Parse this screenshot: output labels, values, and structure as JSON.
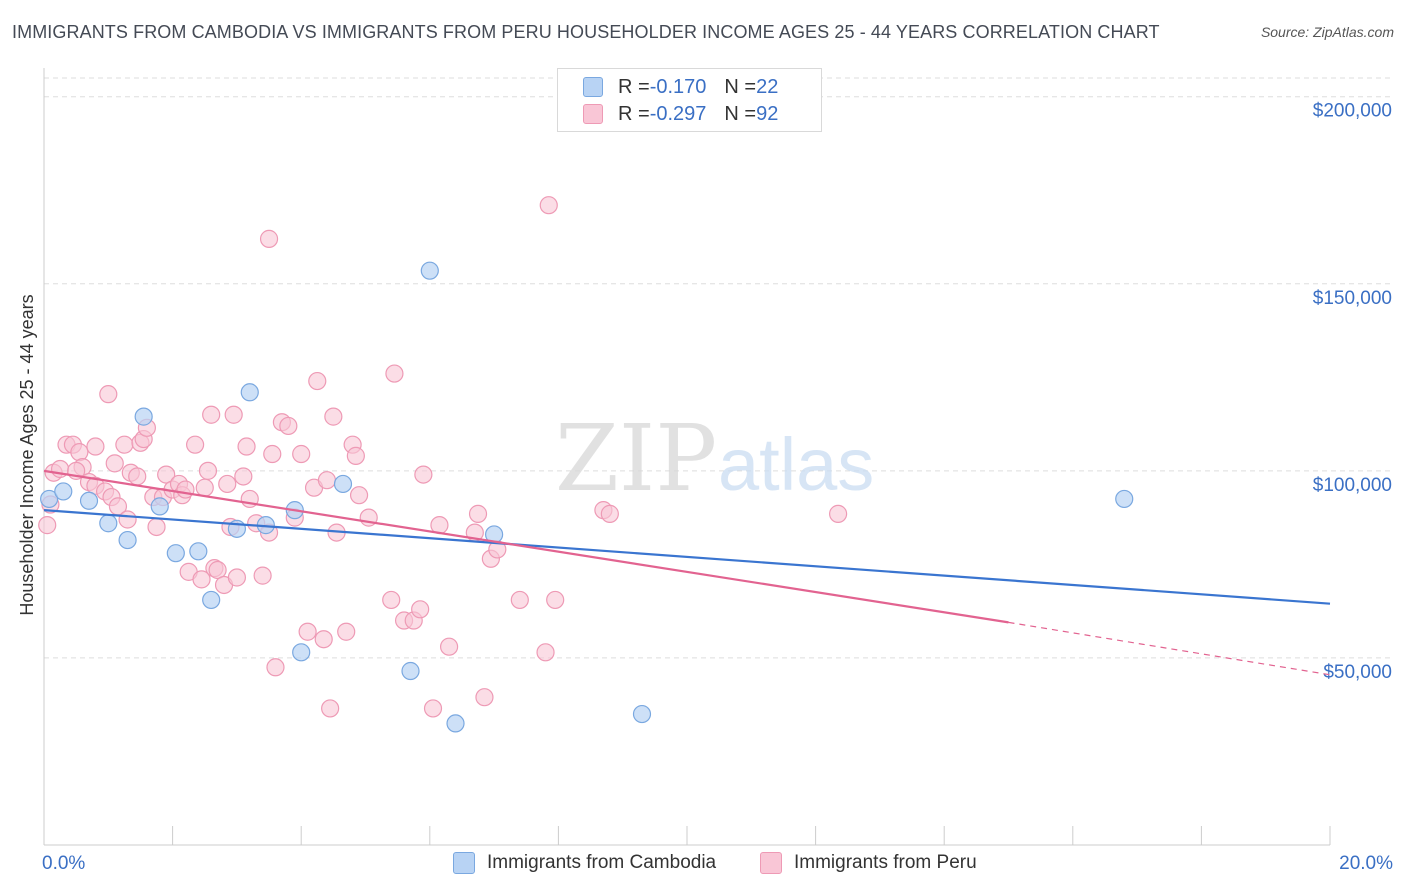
{
  "title": "IMMIGRANTS FROM CAMBODIA VS IMMIGRANTS FROM PERU HOUSEHOLDER INCOME AGES 25 - 44 YEARS CORRELATION CHART",
  "source": "Source: ZipAtlas.com",
  "watermark": {
    "zip": "ZIP",
    "atlas": "atlas"
  },
  "legend": {
    "cambodia": {
      "r_label": "R = ",
      "r_value": "-0.170",
      "n_label": "N = ",
      "n_value": "22"
    },
    "peru": {
      "r_label": "R = ",
      "r_value": "-0.297",
      "n_label": "N = ",
      "n_value": "92"
    }
  },
  "colors": {
    "cambodia_fill": "#b8d3f4",
    "cambodia_stroke": "#7aa8e0",
    "cambodia_line": "#3a75d0",
    "peru_fill": "#f9c6d6",
    "peru_stroke": "#ee9ab5",
    "peru_line": "#e26390",
    "axis_label": "#3a6fc4",
    "grid": "#dddddd"
  },
  "chart_data": {
    "type": "scatter",
    "title": "IMMIGRANTS FROM CAMBODIA VS IMMIGRANTS FROM PERU HOUSEHOLDER INCOME AGES 25 - 44 YEARS CORRELATION CHART",
    "xlabel": "",
    "ylabel": "Householder Income Ages 25 - 44 years",
    "xlim": [
      0,
      20
    ],
    "ylim": [
      0,
      205000
    ],
    "x_tick_labels": [
      "0.0%",
      "20.0%"
    ],
    "y_ticks": [
      50000,
      100000,
      150000,
      200000
    ],
    "y_tick_labels": [
      "$50,000",
      "$100,000",
      "$150,000",
      "$200,000"
    ],
    "grid": true,
    "legend_position": "top-center",
    "series": [
      {
        "name": "Immigrants from Cambodia",
        "points": [
          [
            0.08,
            92500
          ],
          [
            0.3,
            94500
          ],
          [
            0.7,
            92000
          ],
          [
            1.0,
            86000
          ],
          [
            1.3,
            81500
          ],
          [
            1.55,
            114500
          ],
          [
            1.8,
            90500
          ],
          [
            2.05,
            78000
          ],
          [
            2.4,
            78500
          ],
          [
            2.6,
            65500
          ],
          [
            3.0,
            84500
          ],
          [
            3.2,
            121000
          ],
          [
            3.45,
            85500
          ],
          [
            3.9,
            89500
          ],
          [
            4.0,
            51500
          ],
          [
            4.65,
            96500
          ],
          [
            5.7,
            46500
          ],
          [
            6.0,
            153500
          ],
          [
            6.4,
            32500
          ],
          [
            7.0,
            83000
          ],
          [
            9.3,
            35000
          ],
          [
            16.8,
            92500
          ]
        ],
        "trend": {
          "x": [
            0,
            20
          ],
          "y": [
            89500,
            64500
          ]
        }
      },
      {
        "name": "Immigrants from Peru",
        "points": [
          [
            0.05,
            85500
          ],
          [
            0.1,
            91000
          ],
          [
            0.15,
            99500
          ],
          [
            0.25,
            100500
          ],
          [
            0.35,
            107000
          ],
          [
            0.45,
            107000
          ],
          [
            0.55,
            105000
          ],
          [
            0.6,
            101000
          ],
          [
            0.7,
            97000
          ],
          [
            0.8,
            96000
          ],
          [
            0.8,
            106500
          ],
          [
            0.95,
            94500
          ],
          [
            1.05,
            93000
          ],
          [
            1.0,
            120500
          ],
          [
            1.1,
            102000
          ],
          [
            1.15,
            90500
          ],
          [
            1.25,
            107000
          ],
          [
            1.3,
            87000
          ],
          [
            1.35,
            99500
          ],
          [
            1.45,
            98500
          ],
          [
            1.5,
            107500
          ],
          [
            1.55,
            108500
          ],
          [
            1.6,
            111500
          ],
          [
            1.7,
            93000
          ],
          [
            1.75,
            85000
          ],
          [
            1.85,
            93000
          ],
          [
            1.9,
            99000
          ],
          [
            2.0,
            95000
          ],
          [
            2.1,
            96500
          ],
          [
            2.15,
            93500
          ],
          [
            2.2,
            95000
          ],
          [
            2.25,
            73000
          ],
          [
            2.35,
            107000
          ],
          [
            2.45,
            71000
          ],
          [
            2.5,
            95500
          ],
          [
            2.55,
            100000
          ],
          [
            2.6,
            115000
          ],
          [
            2.65,
            74000
          ],
          [
            2.7,
            73500
          ],
          [
            2.8,
            69500
          ],
          [
            2.85,
            96500
          ],
          [
            2.9,
            85000
          ],
          [
            2.95,
            115000
          ],
          [
            3.0,
            71500
          ],
          [
            3.1,
            98500
          ],
          [
            3.15,
            106500
          ],
          [
            3.2,
            92500
          ],
          [
            3.3,
            86000
          ],
          [
            3.4,
            72000
          ],
          [
            3.5,
            83500
          ],
          [
            3.5,
            162000
          ],
          [
            3.55,
            104500
          ],
          [
            3.6,
            47500
          ],
          [
            3.7,
            113000
          ],
          [
            3.8,
            112000
          ],
          [
            3.9,
            87500
          ],
          [
            4.0,
            104500
          ],
          [
            4.1,
            57000
          ],
          [
            4.2,
            95500
          ],
          [
            4.25,
            124000
          ],
          [
            4.35,
            55000
          ],
          [
            4.4,
            97500
          ],
          [
            4.45,
            36500
          ],
          [
            4.5,
            114500
          ],
          [
            4.55,
            83500
          ],
          [
            4.7,
            57000
          ],
          [
            4.8,
            107000
          ],
          [
            4.85,
            104000
          ],
          [
            4.9,
            93500
          ],
          [
            5.05,
            87500
          ],
          [
            5.4,
            65500
          ],
          [
            5.45,
            126000
          ],
          [
            5.6,
            60000
          ],
          [
            5.75,
            60000
          ],
          [
            5.85,
            63000
          ],
          [
            5.9,
            99000
          ],
          [
            6.05,
            36500
          ],
          [
            6.15,
            85500
          ],
          [
            6.3,
            53000
          ],
          [
            6.7,
            83500
          ],
          [
            6.75,
            88500
          ],
          [
            6.85,
            39500
          ],
          [
            6.95,
            76500
          ],
          [
            7.05,
            79000
          ],
          [
            7.4,
            65500
          ],
          [
            7.8,
            51500
          ],
          [
            7.85,
            171000
          ],
          [
            7.95,
            65500
          ],
          [
            8.7,
            89500
          ],
          [
            8.8,
            88500
          ],
          [
            12.35,
            88500
          ],
          [
            0.5,
            100000
          ]
        ],
        "trend": {
          "x": [
            0,
            15
          ],
          "y": [
            100000,
            59500
          ]
        },
        "trend_extension": {
          "x": [
            15,
            20
          ],
          "y": [
            59500,
            45500
          ]
        }
      }
    ]
  },
  "bottom_legend": {
    "cambodia": "Immigrants from Cambodia",
    "peru": "Immigrants from Peru"
  }
}
